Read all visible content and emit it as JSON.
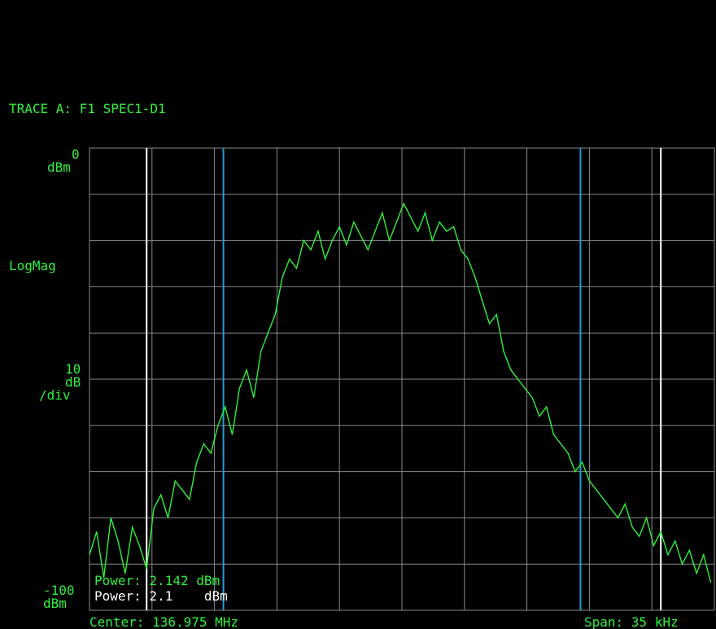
{
  "trace_title": "TRACE A: F1 SPEC1-D1",
  "ref_top": {
    "value": "0",
    "unit": "dBm"
  },
  "scale_type": "LogMag",
  "scale": {
    "value": "10",
    "unit1": "dB",
    "unit2": "/div"
  },
  "ref_bottom": {
    "value": "-100",
    "unit": "dBm"
  },
  "center": "Center: 136.975 MHz",
  "span": "Span: 35 kHz",
  "power_readouts": [
    {
      "label": "Power: 2.142 dBm",
      "color": "#2df23a"
    },
    {
      "label": "Power: 2.1    dBm",
      "color": "#ffffff"
    }
  ],
  "colors": {
    "background": "#000000",
    "grid": "#8a8a8a",
    "trace": "#2df23a",
    "text": "#2df23a",
    "marker_blue": "#1f9fd6",
    "marker_white": "#ffffff"
  },
  "chart_data": {
    "type": "line",
    "title": "TRACE A: F1 SPEC1-D1",
    "xlabel": "Center: 136.975 MHz",
    "ylabel": "LogMag",
    "x_unit": "kHz offset from center",
    "ylim": [
      -100,
      0
    ],
    "xlim": [
      -17.5,
      17.5
    ],
    "grid": true,
    "grid_divisions": {
      "x": 10,
      "y": 10
    },
    "markers": [
      {
        "name": "outer-left",
        "x": -14.3,
        "color": "#ffffff"
      },
      {
        "name": "band-left",
        "x": -10.0,
        "color": "#1f9fd6"
      },
      {
        "name": "band-right",
        "x": 10.0,
        "color": "#1f9fd6"
      },
      {
        "name": "outer-right",
        "x": 14.5,
        "color": "#ffffff"
      }
    ],
    "series": [
      {
        "color": "#2df23a",
        "x": [
          -17.5,
          -17.1,
          -16.7,
          -16.3,
          -15.9,
          -15.5,
          -15.1,
          -14.7,
          -14.3,
          -13.9,
          -13.5,
          -13.1,
          -12.7,
          -12.3,
          -11.9,
          -11.5,
          -11.1,
          -10.7,
          -10.3,
          -9.9,
          -9.5,
          -9.1,
          -8.7,
          -8.3,
          -7.9,
          -7.5,
          -7.1,
          -6.7,
          -6.3,
          -5.9,
          -5.5,
          -5.1,
          -4.7,
          -4.3,
          -3.9,
          -3.5,
          -3.1,
          -2.7,
          -2.3,
          -1.9,
          -1.5,
          -1.1,
          -0.7,
          -0.3,
          0.1,
          0.5,
          0.9,
          1.3,
          1.7,
          2.1,
          2.5,
          2.9,
          3.3,
          3.7,
          4.1,
          4.5,
          4.9,
          5.3,
          5.7,
          6.1,
          6.5,
          6.9,
          7.3,
          7.7,
          8.1,
          8.5,
          8.9,
          9.3,
          9.7,
          10.1,
          10.5,
          10.9,
          11.3,
          11.7,
          12.1,
          12.5,
          12.9,
          13.3,
          13.7,
          14.1,
          14.5,
          14.9,
          15.3,
          15.7,
          16.1,
          16.5,
          16.9,
          17.3
        ],
        "y": [
          -88,
          -83,
          -93,
          -80,
          -85,
          -92,
          -82,
          -86,
          -91,
          -78,
          -75,
          -80,
          -72,
          -74,
          -76,
          -68,
          -64,
          -66,
          -60,
          -56,
          -62,
          -52,
          -48,
          -54,
          -44,
          -40,
          -36,
          -28,
          -24,
          -26,
          -20,
          -22,
          -18,
          -24,
          -20,
          -17,
          -21,
          -16,
          -19,
          -22,
          -18,
          -14,
          -20,
          -16,
          -12,
          -15,
          -18,
          -14,
          -20,
          -16,
          -18,
          -17,
          -22,
          -24,
          -28,
          -33,
          -38,
          -36,
          -44,
          -48,
          -50,
          -52,
          -54,
          -58,
          -56,
          -62,
          -64,
          -66,
          -70,
          -68,
          -72,
          -74,
          -76,
          -78,
          -80,
          -77,
          -82,
          -84,
          -80,
          -86,
          -83,
          -88,
          -85,
          -90,
          -87,
          -92,
          -88,
          -94
        ]
      }
    ]
  }
}
